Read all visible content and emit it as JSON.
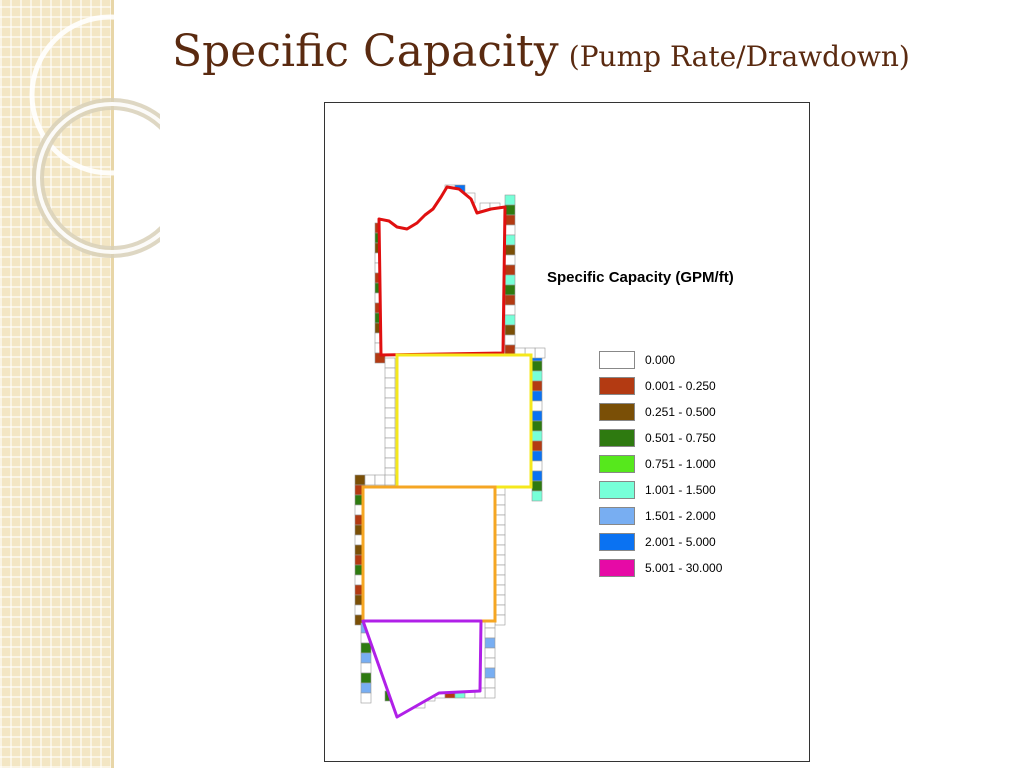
{
  "title": {
    "main": "Specific Capacity",
    "sub": "(Pump Rate/Drawdown)"
  },
  "legend": {
    "title": "Specific Capacity (GPM/ft)",
    "items": [
      {
        "label": "0.000",
        "color": "#ffffff"
      },
      {
        "label": "0.001 - 0.250",
        "color": "#b33a12"
      },
      {
        "label": "0.251 - 0.500",
        "color": "#7a4f06"
      },
      {
        "label": "0.501 - 0.750",
        "color": "#2e7a10"
      },
      {
        "label": "0.751 - 1.000",
        "color": "#56e81c"
      },
      {
        "label": "1.001 - 1.500",
        "color": "#77ffd8"
      },
      {
        "label": "1.501 - 2.000",
        "color": "#78aef2"
      },
      {
        "label": "2.001 - 5.000",
        "color": "#0a72f2"
      },
      {
        "label": "5.001 - 30.000",
        "color": "#e60aa6"
      }
    ]
  },
  "map": {
    "zones": [
      {
        "name": "zone-1",
        "color": "#e01010"
      },
      {
        "name": "zone-2",
        "color": "#f5e81c"
      },
      {
        "name": "zone-3",
        "color": "#f5a623"
      },
      {
        "name": "zone-4",
        "color": "#b020e8"
      }
    ]
  }
}
